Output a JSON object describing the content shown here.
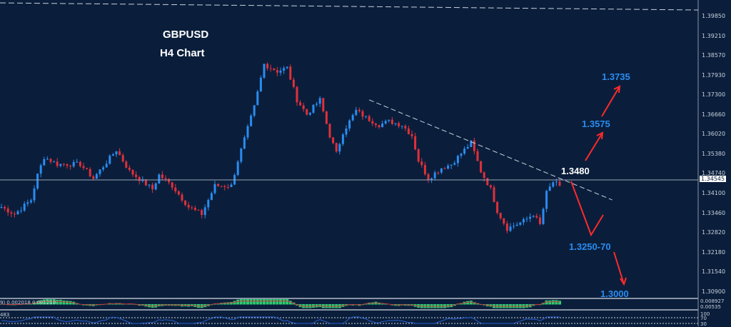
{
  "title": {
    "symbol": "GBPUSD",
    "timeframe": "H4  Chart"
  },
  "chart_data": {
    "type": "candlestick",
    "symbol": "GBPUSD",
    "timeframe": "H4",
    "ylim": [
      1.306,
      1.4
    ],
    "y_ticks": [
      "1.39850",
      "1.39210",
      "1.38570",
      "1.37930",
      "1.37300",
      "1.36660",
      "1.36020",
      "1.35380",
      "1.34740",
      "1.34100",
      "1.33460",
      "1.32820",
      "1.32180",
      "1.31540",
      "1.30900"
    ],
    "current_price": "1.34545",
    "close_anchors": [
      [
        0,
        1.3366
      ],
      [
        4,
        1.3343
      ],
      [
        9,
        1.3389
      ],
      [
        11,
        1.347
      ],
      [
        13,
        1.3528
      ],
      [
        17,
        1.3505
      ],
      [
        24,
        1.3505
      ],
      [
        28,
        1.3459
      ],
      [
        35,
        1.3551
      ],
      [
        39,
        1.3482
      ],
      [
        46,
        1.3424
      ],
      [
        48,
        1.347
      ],
      [
        52,
        1.3435
      ],
      [
        57,
        1.3366
      ],
      [
        61,
        1.3343
      ],
      [
        65,
        1.3435
      ],
      [
        70,
        1.3435
      ],
      [
        72,
        1.3517
      ],
      [
        75,
        1.3621
      ],
      [
        77,
        1.3691
      ],
      [
        80,
        1.383
      ],
      [
        84,
        1.3807
      ],
      [
        87,
        1.3818
      ],
      [
        90,
        1.3714
      ],
      [
        93,
        1.3667
      ],
      [
        97,
        1.3714
      ],
      [
        100,
        1.3598
      ],
      [
        102,
        1.354
      ],
      [
        104,
        1.3609
      ],
      [
        108,
        1.3679
      ],
      [
        111,
        1.3656
      ],
      [
        115,
        1.3633
      ],
      [
        118,
        1.3644
      ],
      [
        122,
        1.3633
      ],
      [
        125,
        1.3598
      ],
      [
        127,
        1.3517
      ],
      [
        130,
        1.3459
      ],
      [
        134,
        1.3493
      ],
      [
        137,
        1.3505
      ],
      [
        140,
        1.354
      ],
      [
        143,
        1.3575
      ],
      [
        146,
        1.3482
      ],
      [
        149,
        1.3424
      ],
      [
        151,
        1.3354
      ],
      [
        154,
        1.3296
      ],
      [
        159,
        1.332
      ],
      [
        162,
        1.3343
      ],
      [
        164,
        1.3308
      ],
      [
        166,
        1.3412
      ],
      [
        168,
        1.3447
      ],
      [
        170,
        1.3435
      ]
    ],
    "trendline": {
      "from": [
        112,
        1.3714
      ],
      "to": [
        186,
        1.3389
      ],
      "style": "dashed"
    },
    "annotations": [
      "1.3480",
      "1.3575",
      "1.3735",
      "1.3250-70",
      "1.3000"
    ],
    "indicators": {
      "macd_label": "9) 0.002018 0.001210",
      "macd_axis": [
        "0.008927",
        "0.00535"
      ],
      "lower_label": "483",
      "lower_axis": [
        "100",
        "70",
        "30"
      ]
    },
    "colors": {
      "background": "#0a1e3b",
      "bull": "#2a8cf0",
      "bear": "#e0303a",
      "arrow": "#ff2a2a",
      "label": "#2a8cf0"
    }
  }
}
